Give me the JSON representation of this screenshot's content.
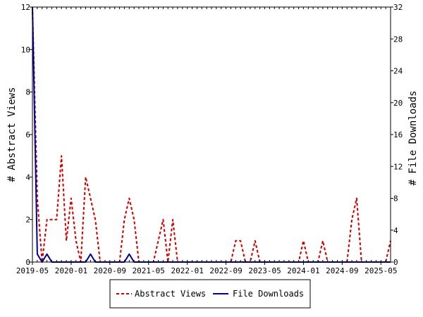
{
  "chart_data": {
    "type": "line",
    "left_axis": {
      "label": "# Abstract Views",
      "range": [
        0,
        12
      ],
      "ticks": [
        0,
        2,
        4,
        6,
        8,
        10,
        12
      ]
    },
    "right_axis": {
      "label": "# File Downloads",
      "range": [
        0,
        32
      ],
      "ticks": [
        0,
        4,
        8,
        12,
        16,
        20,
        24,
        28,
        32
      ]
    },
    "x_axis": {
      "range": [
        "2019-05",
        "2025-07"
      ],
      "tick_labels": [
        "2019-05",
        "2020-01",
        "2020-09",
        "2021-05",
        "2022-01",
        "2022-09",
        "2023-05",
        "2024-01",
        "2024-09",
        "2025-05"
      ]
    },
    "months": [
      "2019-05",
      "2019-06",
      "2019-07",
      "2019-08",
      "2019-09",
      "2019-10",
      "2019-11",
      "2019-12",
      "2020-01",
      "2020-02",
      "2020-03",
      "2020-04",
      "2020-05",
      "2020-06",
      "2020-07",
      "2020-08",
      "2020-09",
      "2020-10",
      "2020-11",
      "2020-12",
      "2021-01",
      "2021-02",
      "2021-03",
      "2021-04",
      "2021-05",
      "2021-06",
      "2021-07",
      "2021-08",
      "2021-09",
      "2021-10",
      "2021-11",
      "2021-12",
      "2022-01",
      "2022-02",
      "2022-03",
      "2022-04",
      "2022-05",
      "2022-06",
      "2022-07",
      "2022-08",
      "2022-09",
      "2022-10",
      "2022-11",
      "2022-12",
      "2023-01",
      "2023-02",
      "2023-03",
      "2023-04",
      "2023-05",
      "2023-06",
      "2023-07",
      "2023-08",
      "2023-09",
      "2023-10",
      "2023-11",
      "2023-12",
      "2024-01",
      "2024-02",
      "2024-03",
      "2024-04",
      "2024-05",
      "2024-06",
      "2024-07",
      "2024-08",
      "2024-09",
      "2024-10",
      "2024-11",
      "2024-12",
      "2025-01",
      "2025-02",
      "2025-03",
      "2025-04",
      "2025-05",
      "2025-06",
      "2025-07"
    ],
    "series": [
      {
        "name": "Abstract Views",
        "axis": "left",
        "color": "#cc0000",
        "style": "dashed",
        "values": [
          12,
          3,
          0,
          2,
          2,
          2,
          5,
          1,
          3,
          1,
          0,
          4,
          3,
          2,
          0,
          0,
          0,
          0,
          0,
          2,
          3,
          2,
          0,
          0,
          0,
          0,
          1,
          2,
          0,
          2,
          0,
          0,
          0,
          0,
          0,
          0,
          0,
          0,
          0,
          0,
          0,
          0,
          1,
          1,
          0,
          0,
          1,
          0,
          0,
          0,
          0,
          0,
          0,
          0,
          0,
          0,
          1,
          0,
          0,
          0,
          1,
          0,
          0,
          0,
          0,
          0,
          2,
          3,
          0,
          0,
          0,
          0,
          0,
          0,
          1
        ]
      },
      {
        "name": "File Downloads",
        "axis": "right",
        "color": "#000099",
        "style": "solid",
        "values": [
          32,
          1,
          0,
          1,
          0,
          0,
          0,
          0,
          0,
          0,
          0,
          0,
          1,
          0,
          0,
          0,
          0,
          0,
          0,
          0,
          1,
          0,
          0,
          0,
          0,
          0,
          0,
          0,
          0,
          0,
          0,
          0,
          0,
          0,
          0,
          0,
          0,
          0,
          0,
          0,
          0,
          0,
          0,
          0,
          0,
          0,
          0,
          0,
          0,
          0,
          0,
          0,
          0,
          0,
          0,
          0,
          0,
          0,
          0,
          0,
          0,
          0,
          0,
          0,
          0,
          0,
          0,
          0,
          0,
          0,
          0,
          0,
          0,
          0,
          0
        ]
      }
    ],
    "legend": {
      "placement": "bottom",
      "entries": [
        "Abstract Views",
        "File Downloads"
      ]
    },
    "grid": false
  }
}
